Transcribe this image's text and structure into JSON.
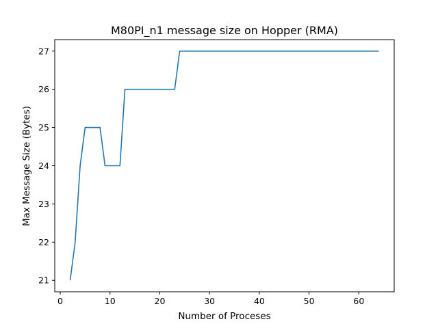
{
  "chart_data": {
    "type": "line",
    "title": "M80PI_n1 message size on Hopper (RMA)",
    "xlabel": "Number of Proceses",
    "ylabel": "Max Message Size (Bytes)",
    "xlim": [
      -1.1,
      67.1
    ],
    "ylim": [
      20.7,
      27.3
    ],
    "xticks": [
      0,
      10,
      20,
      30,
      40,
      50,
      60
    ],
    "yticks": [
      21,
      22,
      23,
      24,
      25,
      26,
      27
    ],
    "grid": false,
    "line_color": "#1f77b4",
    "series": [
      {
        "x": [
          2,
          3,
          4,
          5,
          6,
          7,
          8,
          9,
          10,
          11,
          12,
          13,
          14,
          15,
          16,
          17,
          18,
          19,
          20,
          21,
          22,
          23,
          24,
          25,
          26,
          27,
          28,
          29,
          30,
          31,
          32,
          33,
          34,
          35,
          36,
          37,
          38,
          39,
          40,
          41,
          42,
          43,
          44,
          45,
          46,
          47,
          48,
          49,
          50,
          51,
          52,
          53,
          54,
          55,
          56,
          57,
          58,
          59,
          60,
          61,
          62,
          63,
          64
        ],
        "y": [
          21,
          22,
          24,
          25,
          25,
          25,
          25,
          24,
          24,
          24,
          24,
          26,
          26,
          26,
          26,
          26,
          26,
          26,
          26,
          26,
          26,
          26,
          27,
          27,
          27,
          27,
          27,
          27,
          27,
          27,
          27,
          27,
          27,
          27,
          27,
          27,
          27,
          27,
          27,
          27,
          27,
          27,
          27,
          27,
          27,
          27,
          27,
          27,
          27,
          27,
          27,
          27,
          27,
          27,
          27,
          27,
          27,
          27,
          27,
          27,
          27,
          27,
          27
        ]
      }
    ]
  }
}
